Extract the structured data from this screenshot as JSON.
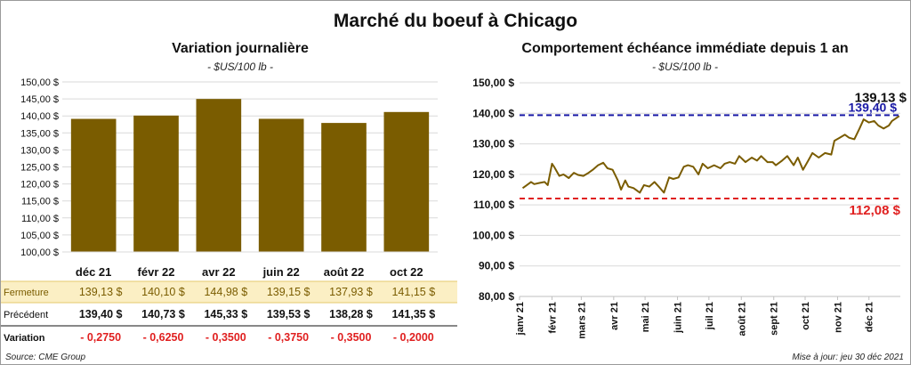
{
  "title": "Marché du boeuf à Chicago",
  "left": {
    "subtitle": "Variation  journalière",
    "unit": "- $US/100 lb -",
    "table": {
      "row_labels": [
        "Fermeture",
        "Précédent",
        "Variation"
      ],
      "fermeture": [
        "139,13  $",
        "140,10  $",
        "144,98  $",
        "139,15  $",
        "137,93  $",
        "141,15  $"
      ],
      "precedent": [
        "139,40  $",
        "140,73  $",
        "145,33  $",
        "139,53  $",
        "138,28  $",
        "141,35  $"
      ],
      "variation": [
        "- 0,2750",
        "- 0,6250",
        "- 0,3500",
        "- 0,3750",
        "- 0,3500",
        "- 0,2000"
      ]
    }
  },
  "right": {
    "subtitle": "Comportement  échéance immédiate depuis 1 an",
    "unit": "- $US/100 lb -"
  },
  "footer": {
    "source": "Source: CME Group",
    "updated": "Mise à jour: jeu 30 déc 2021"
  },
  "colors": {
    "bar": "#7a5c00",
    "line": "#7a5c00",
    "high": "#1a1aa6",
    "low": "#e02020",
    "table_highlight": "#fbefc4"
  },
  "chart_data": [
    {
      "type": "bar",
      "categories": [
        "déc 21",
        "févr 22",
        "avr 22",
        "juin 22",
        "août 22",
        "oct 22"
      ],
      "values": [
        139.13,
        140.1,
        144.98,
        139.15,
        137.93,
        141.15
      ],
      "ylim": [
        100,
        150
      ],
      "ytick_labels": [
        "100,00 $",
        "105,00 $",
        "110,00 $",
        "115,00 $",
        "120,00 $",
        "125,00 $",
        "130,00 $",
        "135,00 $",
        "140,00 $",
        "145,00 $",
        "150,00 $"
      ],
      "grid": true
    },
    {
      "type": "line",
      "ylim": [
        80,
        150
      ],
      "ytick_labels": [
        "80,00 $",
        "90,00 $",
        "100,00 $",
        "110,00 $",
        "120,00 $",
        "130,00 $",
        "140,00 $",
        "150,00 $"
      ],
      "xtick_labels": [
        "janv 21",
        "févr 21",
        "mars 21",
        "avr 21",
        "mai 21",
        "juin 21",
        "juil 21",
        "août 21",
        "sept 21",
        "oct 21",
        "nov 21",
        "déc 21"
      ],
      "x": [
        "2021-01-04",
        "2021-01-08",
        "2021-01-12",
        "2021-01-15",
        "2021-01-20",
        "2021-01-25",
        "2021-01-28",
        "2021-02-01",
        "2021-02-03",
        "2021-02-08",
        "2021-02-12",
        "2021-02-17",
        "2021-02-22",
        "2021-02-26",
        "2021-03-03",
        "2021-03-08",
        "2021-03-12",
        "2021-03-17",
        "2021-03-22",
        "2021-03-26",
        "2021-03-31",
        "2021-04-05",
        "2021-04-08",
        "2021-04-12",
        "2021-04-15",
        "2021-04-20",
        "2021-04-26",
        "2021-04-30",
        "2021-05-05",
        "2021-05-10",
        "2021-05-14",
        "2021-05-19",
        "2021-05-24",
        "2021-05-28",
        "2021-06-02",
        "2021-06-07",
        "2021-06-11",
        "2021-06-16",
        "2021-06-21",
        "2021-06-25",
        "2021-06-30",
        "2021-07-06",
        "2021-07-12",
        "2021-07-16",
        "2021-07-21",
        "2021-07-26",
        "2021-07-30",
        "2021-08-05",
        "2021-08-11",
        "2021-08-16",
        "2021-08-20",
        "2021-08-26",
        "2021-08-31",
        "2021-09-03",
        "2021-09-09",
        "2021-09-14",
        "2021-09-20",
        "2021-09-24",
        "2021-09-29",
        "2021-10-04",
        "2021-10-08",
        "2021-10-14",
        "2021-10-20",
        "2021-10-26",
        "2021-10-29",
        "2021-11-03",
        "2021-11-08",
        "2021-11-12",
        "2021-11-17",
        "2021-11-22",
        "2021-11-26",
        "2021-12-01",
        "2021-12-06",
        "2021-12-10",
        "2021-12-15",
        "2021-12-20",
        "2021-12-23",
        "2021-12-30"
      ],
      "y": [
        115.5,
        116.5,
        117.5,
        116.8,
        117.2,
        117.5,
        116.5,
        123.5,
        122.5,
        119.5,
        120.0,
        118.8,
        120.5,
        119.8,
        119.5,
        120.5,
        121.5,
        123.0,
        123.8,
        122.0,
        121.5,
        118.0,
        115.0,
        118.0,
        116.0,
        115.5,
        114.0,
        116.5,
        116.0,
        117.5,
        116.0,
        114.0,
        119.0,
        118.5,
        119.0,
        122.5,
        123.0,
        122.5,
        120.0,
        123.5,
        122.0,
        123.0,
        122.0,
        123.5,
        124.0,
        123.5,
        126.0,
        124.0,
        125.5,
        124.5,
        126.0,
        124.0,
        124.0,
        123.0,
        124.5,
        126.0,
        123.0,
        125.5,
        121.5,
        124.5,
        127.0,
        125.5,
        127.0,
        126.5,
        131.0,
        132.0,
        133.0,
        132.0,
        131.5,
        135.0,
        138.0,
        137.0,
        137.5,
        136.0,
        135.0,
        136.0,
        137.5,
        139.13
      ],
      "last_value_label": "139,13 $",
      "reference_lines": [
        {
          "value": 139.4,
          "label": "139,40 $",
          "color": "#1a1aa6"
        },
        {
          "value": 112.08,
          "label": "112,08 $",
          "color": "#e02020"
        }
      ],
      "grid": true
    }
  ]
}
